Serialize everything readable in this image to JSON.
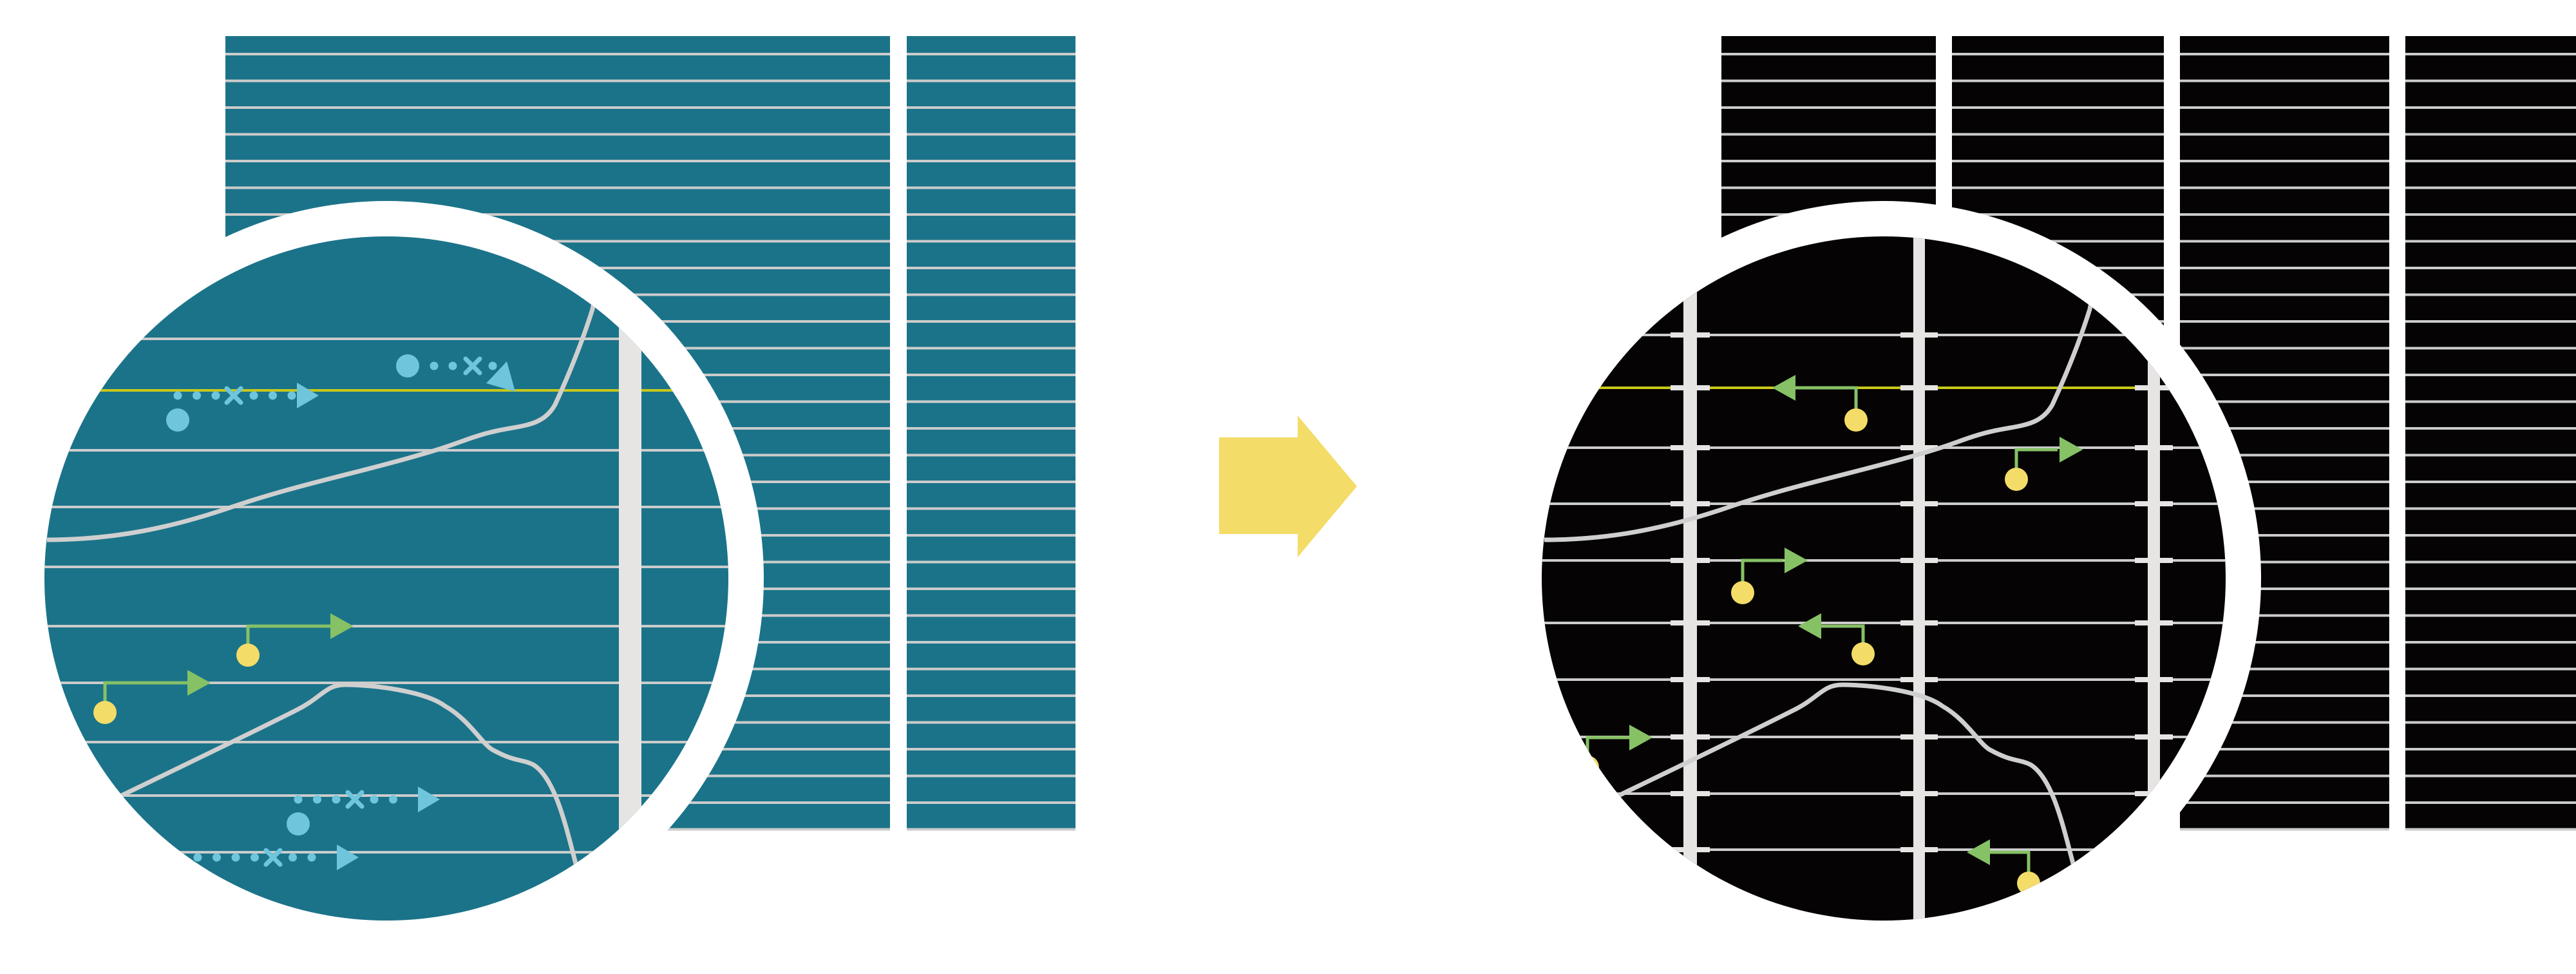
{
  "diagram": {
    "left_view": {
      "background": "#1b7389",
      "magnifier": true,
      "carrier_markers": [
        "blue-dotted-arrow",
        "green-hop-arrow"
      ]
    },
    "transition_arrow": {
      "icon": "right-arrow-icon",
      "color": "#f4dc68"
    },
    "right_view": {
      "background": "#050303",
      "magnifier": true,
      "carrier_markers": [
        "green-hop-arrow"
      ]
    }
  },
  "colors": {
    "teal": "#1b7389",
    "black": "#050303",
    "grid_line": "#cccccc",
    "vertical_bar": "#e6e5e3",
    "blue_marker": "#6ec5dc",
    "green_arrow": "#86c166",
    "yellow_dot": "#f4dc68",
    "yellow_line": "#c8c81a",
    "curve": "#cfcfcf",
    "ring": "#ffffff"
  }
}
